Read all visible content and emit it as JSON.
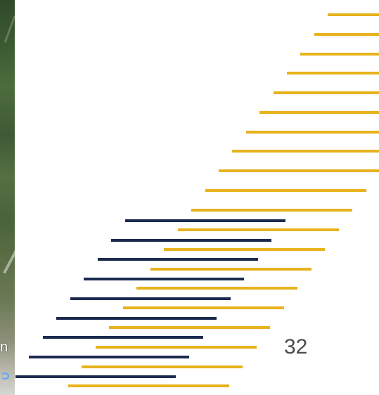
{
  "colors": {
    "gold": "#e7b21c",
    "navy": "#1b2a4e",
    "page_number": "#4b4b4b"
  },
  "photo_strip": {
    "caption": "n",
    "link_icon": "link-icon"
  },
  "slide": {
    "page_number": "32"
  }
}
